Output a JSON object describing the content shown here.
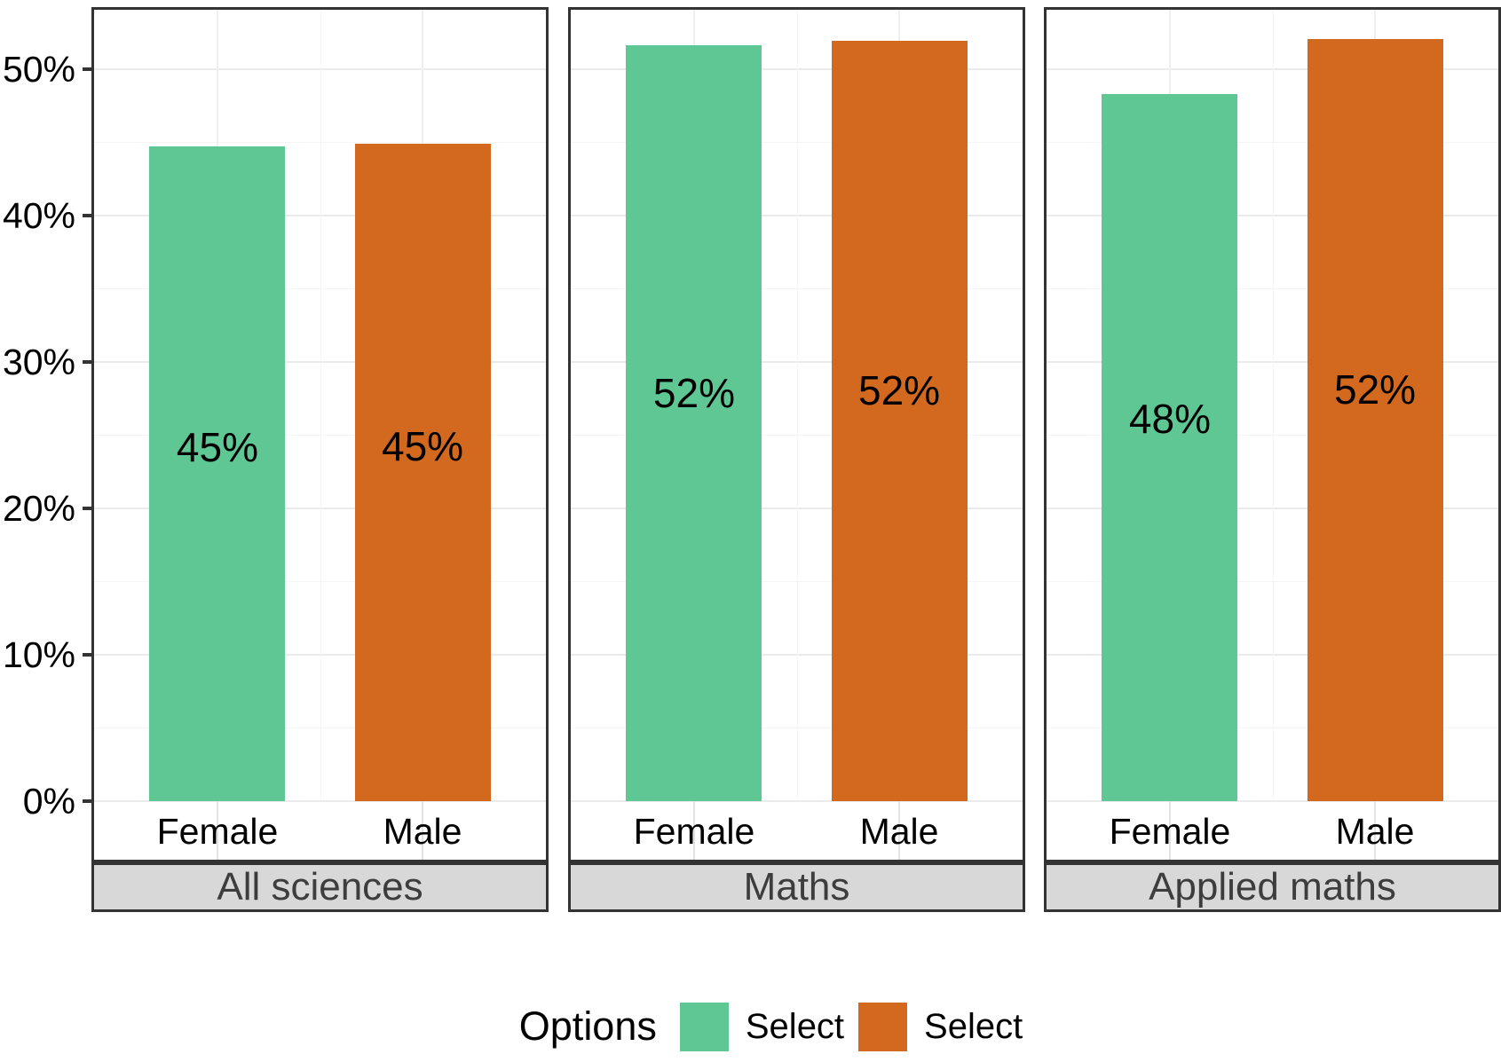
{
  "chart_data": {
    "type": "bar",
    "title": "",
    "xlabel": "",
    "ylabel": "",
    "ylim": [
      0,
      54
    ],
    "grid": "on",
    "legend_position": "bottom",
    "y_ticks": [
      {
        "value": 0,
        "label": "0%"
      },
      {
        "value": 10,
        "label": "10%"
      },
      {
        "value": 20,
        "label": "20%"
      },
      {
        "value": 30,
        "label": "30%"
      },
      {
        "value": 40,
        "label": "40%"
      },
      {
        "value": 50,
        "label": "50%"
      }
    ],
    "categories": [
      "Female",
      "Male"
    ],
    "facets": [
      {
        "label": "All sciences",
        "bars": [
          {
            "category": "Female",
            "series": "Select",
            "value": 44.7,
            "display": "45%",
            "color": "#5fc794"
          },
          {
            "category": "Male",
            "series": "Select",
            "value": 44.9,
            "display": "45%",
            "color": "#d2691e"
          }
        ]
      },
      {
        "label": "Maths",
        "bars": [
          {
            "category": "Female",
            "series": "Select",
            "value": 51.6,
            "display": "52%",
            "color": "#5fc794"
          },
          {
            "category": "Male",
            "series": "Select",
            "value": 51.9,
            "display": "52%",
            "color": "#d2691e"
          }
        ]
      },
      {
        "label": "Applied maths",
        "bars": [
          {
            "category": "Female",
            "series": "Select",
            "value": 48.3,
            "display": "48%",
            "color": "#5fc794"
          },
          {
            "category": "Male",
            "series": "Select",
            "value": 52.0,
            "display": "52%",
            "color": "#d2691e"
          }
        ]
      }
    ],
    "legend": {
      "title": "Options",
      "items": [
        {
          "label": "Select",
          "color": "#5fc794"
        },
        {
          "label": "Select",
          "color": "#d2691e"
        }
      ]
    },
    "colors": {
      "female_bar": "#5fc794",
      "male_bar": "#d2691e",
      "panel_border": "#333333",
      "strip_background": "#d8d8d8",
      "strip_text": "#3d3d3d",
      "gridline_major": "#ebebeb",
      "gridline_minor": "#f5f5f5",
      "text": "#000000"
    }
  }
}
